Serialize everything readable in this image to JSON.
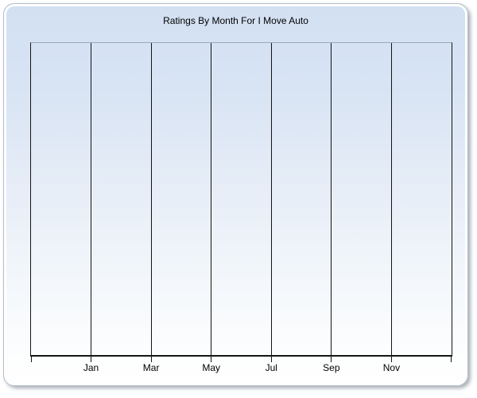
{
  "page": {
    "background": "#ffffff"
  },
  "panel": {
    "background_top": "#d2e0f2",
    "background_bottom": "#ffffff",
    "border_color": "#b3bdc9",
    "inner_border_color": "#ffffff"
  },
  "chart_data": {
    "type": "line",
    "title": "Ratings By Month For I Move Auto",
    "xlabel": "",
    "ylabel": "",
    "x_tick_labels": [
      "Jan",
      "Mar",
      "May",
      "Jul",
      "Sep",
      "Nov"
    ],
    "x_intervals": 7,
    "series": [],
    "grid": "vertical",
    "legend": false,
    "axis_color": "#141414",
    "plot_top_border_color": "#9fa9b6"
  }
}
